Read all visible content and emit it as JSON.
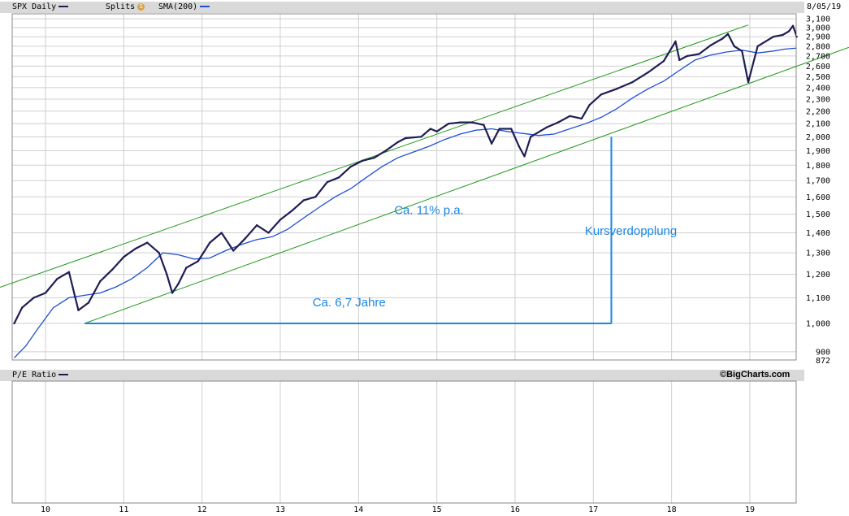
{
  "header": {
    "symbol_label": "SPX Daily",
    "splits_label": "Splits",
    "splits_badge": "S",
    "sma_label": "SMA(200)",
    "date": "8/05/19"
  },
  "lower_panel": {
    "title": "P/E Ratio",
    "credit": "©BigCharts.com"
  },
  "colors": {
    "price": "#1f1d54",
    "sma": "#1f4fd6",
    "channel": "#1e9a1e",
    "annotation": "#1a86e6",
    "grid": "#cfcfcf",
    "band": "#d9d9d9"
  },
  "chart_data": {
    "type": "line",
    "title": "SPX Daily",
    "y_scale": "log",
    "ylim": [
      872,
      3130
    ],
    "xlim": [
      2009.6,
      2019.6
    ],
    "grid": true,
    "legend_position": "top",
    "y_tick_labels": [
      "3,100",
      "3,000",
      "2,900",
      "2,800",
      "2,700",
      "2,600",
      "2,500",
      "2,400",
      "2,300",
      "2,200",
      "2,100",
      "2,000",
      "1,900",
      "1,800",
      "1,700",
      "1,600",
      "1,500",
      "1,400",
      "1,300",
      "1,200",
      "1,100",
      "1,000",
      "900",
      "872"
    ],
    "y_ticks": [
      3100,
      3000,
      2900,
      2800,
      2700,
      2600,
      2500,
      2400,
      2300,
      2200,
      2100,
      2000,
      1900,
      1800,
      1700,
      1600,
      1500,
      1400,
      1300,
      1200,
      1100,
      1000,
      900,
      872
    ],
    "x_tick_labels": [
      "10",
      "11",
      "12",
      "13",
      "14",
      "15",
      "16",
      "17",
      "18",
      "19"
    ],
    "x_ticks": [
      2010,
      2011,
      2012,
      2013,
      2014,
      2015,
      2016,
      2017,
      2018,
      2019
    ],
    "series": [
      {
        "name": "SPX Daily",
        "x": [
          2009.6,
          2009.7,
          2009.85,
          2010.0,
          2010.15,
          2010.3,
          2010.42,
          2010.55,
          2010.7,
          2010.85,
          2011.0,
          2011.15,
          2011.3,
          2011.45,
          2011.55,
          2011.62,
          2011.7,
          2011.8,
          2011.95,
          2012.1,
          2012.25,
          2012.4,
          2012.55,
          2012.7,
          2012.85,
          2013.0,
          2013.15,
          2013.3,
          2013.45,
          2013.6,
          2013.75,
          2013.9,
          2014.05,
          2014.2,
          2014.35,
          2014.5,
          2014.6,
          2014.8,
          2014.92,
          2015.0,
          2015.15,
          2015.3,
          2015.45,
          2015.6,
          2015.7,
          2015.8,
          2015.95,
          2016.05,
          2016.12,
          2016.2,
          2016.4,
          2016.55,
          2016.7,
          2016.85,
          2016.95,
          2017.1,
          2017.3,
          2017.5,
          2017.7,
          2017.9,
          2018.05,
          2018.1,
          2018.2,
          2018.35,
          2018.5,
          2018.65,
          2018.72,
          2018.8,
          2018.9,
          2018.98,
          2019.1,
          2019.3,
          2019.42,
          2019.5,
          2019.55,
          2019.6
        ],
        "values": [
          1000,
          1060,
          1100,
          1120,
          1180,
          1210,
          1050,
          1080,
          1170,
          1220,
          1280,
          1320,
          1350,
          1300,
          1200,
          1120,
          1160,
          1230,
          1260,
          1350,
          1400,
          1310,
          1370,
          1440,
          1400,
          1470,
          1520,
          1580,
          1600,
          1690,
          1720,
          1790,
          1830,
          1850,
          1900,
          1960,
          1990,
          2000,
          2060,
          2040,
          2100,
          2110,
          2110,
          2090,
          1950,
          2060,
          2060,
          1930,
          1860,
          2000,
          2070,
          2110,
          2160,
          2140,
          2250,
          2340,
          2390,
          2450,
          2540,
          2650,
          2850,
          2660,
          2700,
          2720,
          2810,
          2880,
          2930,
          2800,
          2750,
          2450,
          2800,
          2900,
          2920,
          2960,
          3020,
          2900
        ]
      },
      {
        "name": "SMA(200)",
        "x": [
          2009.6,
          2009.75,
          2009.9,
          2010.1,
          2010.3,
          2010.5,
          2010.7,
          2010.9,
          2011.1,
          2011.3,
          2011.5,
          2011.7,
          2011.9,
          2012.1,
          2012.3,
          2012.5,
          2012.7,
          2012.9,
          2013.1,
          2013.3,
          2013.5,
          2013.7,
          2013.9,
          2014.1,
          2014.3,
          2014.5,
          2014.7,
          2014.9,
          2015.1,
          2015.3,
          2015.5,
          2015.7,
          2015.9,
          2016.1,
          2016.3,
          2016.5,
          2016.7,
          2016.9,
          2017.1,
          2017.3,
          2017.5,
          2017.7,
          2017.9,
          2018.1,
          2018.3,
          2018.5,
          2018.7,
          2018.9,
          2019.1,
          2019.3,
          2019.45,
          2019.6
        ],
        "values": [
          880,
          920,
          980,
          1060,
          1100,
          1110,
          1120,
          1145,
          1180,
          1230,
          1300,
          1290,
          1270,
          1275,
          1310,
          1340,
          1365,
          1380,
          1420,
          1480,
          1540,
          1600,
          1650,
          1720,
          1790,
          1850,
          1890,
          1930,
          1980,
          2020,
          2050,
          2060,
          2040,
          2025,
          2010,
          2020,
          2060,
          2100,
          2150,
          2220,
          2310,
          2390,
          2460,
          2560,
          2660,
          2710,
          2740,
          2760,
          2730,
          2750,
          2770,
          2780
        ]
      }
    ],
    "channel_lines": [
      {
        "name": "",
        "x": [
          2009.6,
          2018.98
        ],
        "values": [
          1165,
          3030
        ]
      },
      {
        "name": "",
        "x": [
          2010.5,
          2019.6
        ],
        "values": [
          1000,
          2600
        ]
      }
    ],
    "annotations": [
      {
        "text": "Ca. 11% p.a.",
        "x": 2014.9,
        "value": 1500
      },
      {
        "text": "Kursverdopplung",
        "x": 2017.48,
        "value": 1390
      },
      {
        "text": "Ca. 6,7 Jahre",
        "x": 2013.88,
        "value": 1065
      }
    ],
    "measure_lines": [
      {
        "x": [
          2010.5,
          2017.23
        ],
        "values": [
          1000,
          1000
        ]
      },
      {
        "x": [
          2017.23,
          2017.23
        ],
        "values": [
          1000,
          2000
        ]
      }
    ]
  }
}
